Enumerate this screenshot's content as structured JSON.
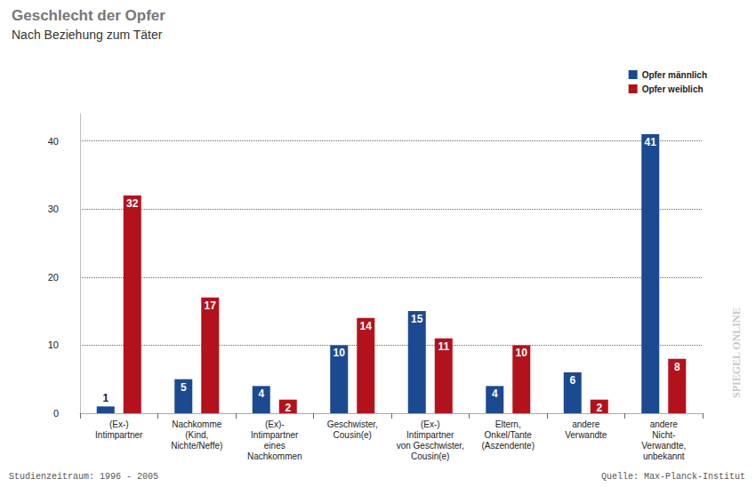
{
  "chart_data": {
    "type": "bar",
    "title": "Geschlecht der Opfer",
    "subtitle": "Nach Beziehung zum Täter",
    "categories": [
      "(Ex-)\nIntimpartner",
      "Nachkomme\n(Kind,\nNichte/Neffe)",
      "(Ex)-\nIntimpartner\neines\nNachkommen",
      "Geschwister,\nCousin(e)",
      "(Ex-)\nIntimpartner\nvon Geschwister,\nCousin(e)",
      "Eltern,\nOnkel/Tante\n(Aszendente)",
      "andere\nVerwandte",
      "andere\nNicht-\nVerwandte,\nunbekannt"
    ],
    "series": [
      {
        "name": "Opfer männlich",
        "color": "#1b4a90",
        "values": [
          1,
          5,
          4,
          10,
          15,
          4,
          6,
          41
        ]
      },
      {
        "name": "Opfer weiblich",
        "color": "#b3121c",
        "values": [
          32,
          17,
          2,
          14,
          11,
          10,
          2,
          8
        ]
      }
    ],
    "ylim": [
      0,
      44
    ],
    "yticks": [
      0,
      10,
      20,
      30,
      40
    ],
    "grid": true,
    "legend": "upper right",
    "data_labels": true,
    "annotations": [
      "Studienzeitraum: 1996 - 2005",
      "Quelle: Max-Planck-Institut",
      "SPIEGEL ONLINE"
    ]
  }
}
